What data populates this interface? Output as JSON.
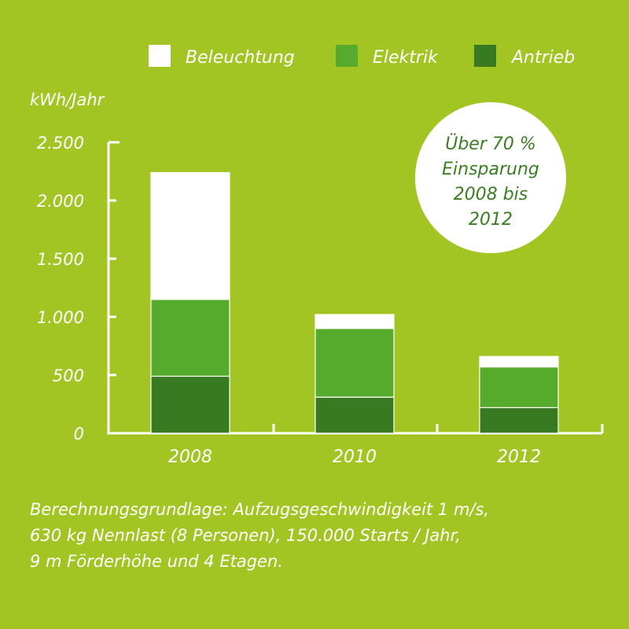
{
  "colors": {
    "background": "#a3c523",
    "Beleuchtung": "#ffffff",
    "Elektrik": "#57ab2c",
    "Antrieb": "#377a22",
    "callout_text": "#3a7d22"
  },
  "chart_data": {
    "type": "bar",
    "stacked": true,
    "categories": [
      "2008",
      "2010",
      "2012"
    ],
    "series": [
      {
        "name": "Antrieb",
        "values": [
          490,
          310,
          220
        ]
      },
      {
        "name": "Elektrik",
        "values": [
          660,
          590,
          350
        ]
      },
      {
        "name": "Beleuchtung",
        "values": [
          1090,
          120,
          90
        ]
      }
    ],
    "legend_order": [
      "Beleuchtung",
      "Elektrik",
      "Antrieb"
    ],
    "ylabel": "kWh/Jahr",
    "ylim": [
      0,
      2500
    ],
    "yticks": [
      0,
      500,
      1000,
      1500,
      2000,
      2500
    ],
    "ytick_labels": [
      "0",
      "500",
      "1.000",
      "1.500",
      "2.000",
      "2.500"
    ],
    "legend_position": "top",
    "grid": false,
    "annotation": [
      "Über 70 %",
      "Einsparung",
      "2008 bis",
      "2012"
    ]
  },
  "footnote": [
    "Berechnungsgrundlage: Aufzugsgeschwindigkeit 1 m/s,",
    "630 kg Nennlast (8 Personen), 150.000 Starts / Jahr,",
    "9 m Förderhöhe und 4 Etagen."
  ]
}
